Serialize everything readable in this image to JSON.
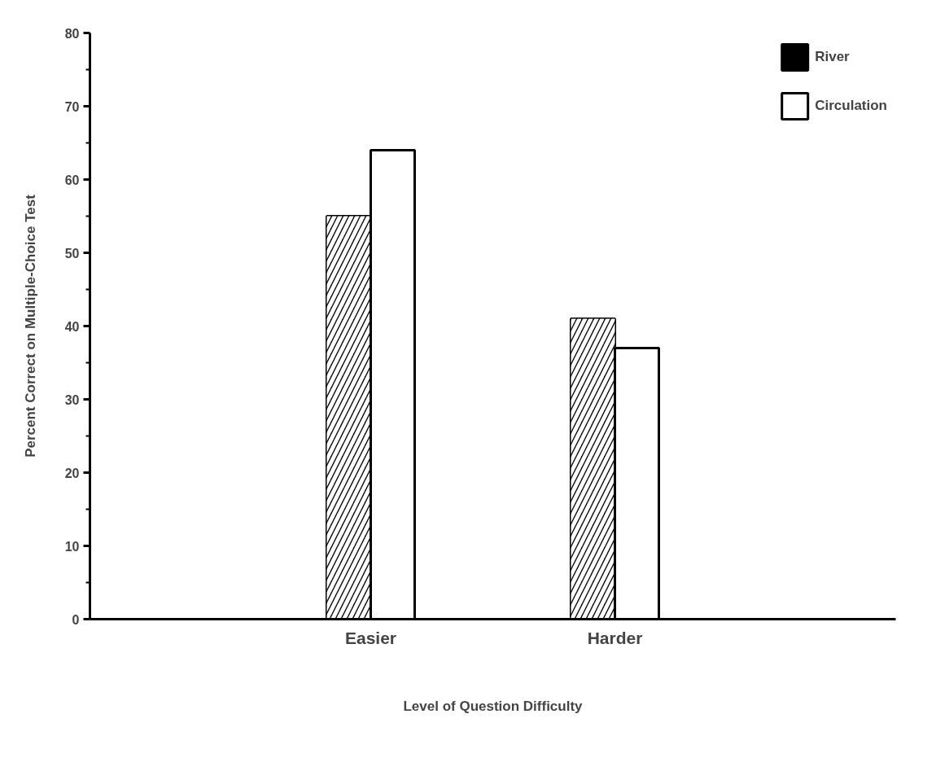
{
  "chart_data": {
    "type": "bar",
    "xlabel": "Level of Question Difficulty",
    "ylabel": "Percent Correct on Multiple-Choice Test",
    "categories": [
      "Easier",
      "Harder"
    ],
    "series": [
      {
        "name": "River",
        "color": "#000000",
        "values": [
          55,
          41
        ]
      },
      {
        "name": "Circulation",
        "color": "#ffffff",
        "values": [
          64,
          37
        ]
      }
    ],
    "ylim": [
      0,
      80
    ],
    "yticks": [
      0,
      10,
      20,
      30,
      40,
      50,
      60,
      70,
      80
    ],
    "grid": false,
    "legend": "top right"
  }
}
